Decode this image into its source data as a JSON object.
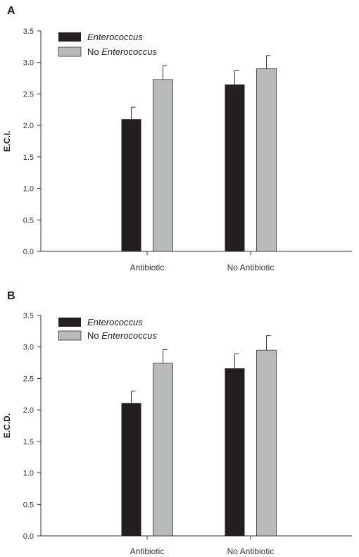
{
  "chart_data": [
    {
      "panel_label": "A",
      "type": "bar",
      "categories": [
        "Antibiotic",
        "No Antibiotic"
      ],
      "series": [
        {
          "name": "Enterococcus",
          "name_prefix": "",
          "name_italic": "Enterococcus",
          "color": "#231f20",
          "values": [
            2.1,
            2.65
          ],
          "errors": [
            0.19,
            0.22
          ]
        },
        {
          "name": "No Enterococcus",
          "name_prefix": "No ",
          "name_italic": "Enterococcus",
          "color": "#b9babc",
          "values": [
            2.73,
            2.9
          ],
          "errors": [
            0.22,
            0.21
          ]
        }
      ],
      "ylabel": "E.C.I.",
      "ylim": [
        0,
        3.5
      ],
      "yticks": [
        "0.0",
        "0.5",
        "1.0",
        "1.5",
        "2.0",
        "2.5",
        "3.0",
        "3.5"
      ],
      "grid": false,
      "legend": "top-left"
    },
    {
      "panel_label": "B",
      "type": "bar",
      "categories": [
        "Antibiotic",
        "No Antibiotic"
      ],
      "series": [
        {
          "name": "Enterococcus",
          "name_prefix": "",
          "name_italic": "Enterococcus",
          "color": "#231f20",
          "values": [
            2.11,
            2.66
          ],
          "errors": [
            0.19,
            0.23
          ]
        },
        {
          "name": "No Enterococcus",
          "name_prefix": "No ",
          "name_italic": "Enterococcus",
          "color": "#b9babc",
          "values": [
            2.74,
            2.95
          ],
          "errors": [
            0.22,
            0.23
          ]
        }
      ],
      "ylabel": "E.C.D.",
      "ylim": [
        0,
        3.5
      ],
      "yticks": [
        "0.0",
        "0.5",
        "1.0",
        "1.5",
        "2.0",
        "2.5",
        "3.0",
        "3.5"
      ],
      "grid": false,
      "legend": "top-left"
    }
  ]
}
